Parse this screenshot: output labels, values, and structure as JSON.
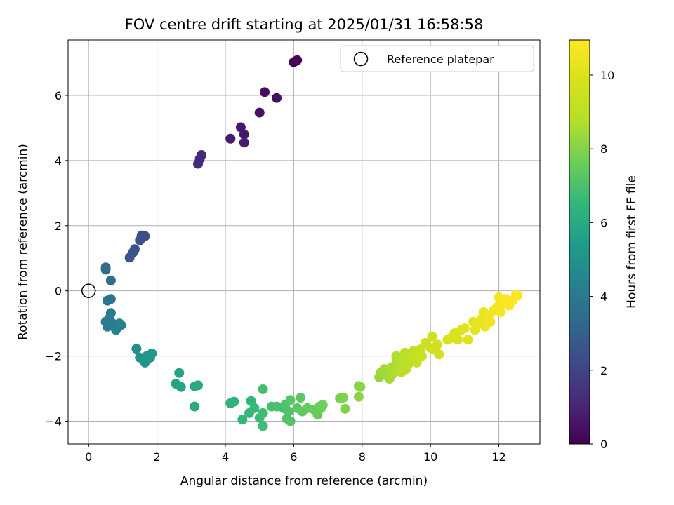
{
  "chart_data": {
    "type": "scatter",
    "title": "FOV centre drift starting at 2025/01/31 16:58:58",
    "xlabel": "Angular distance from reference (arcmin)",
    "ylabel": "Rotation from reference (arcmin)",
    "xlim": [
      -0.6,
      13.2
    ],
    "ylim": [
      -4.7,
      7.7
    ],
    "xticks": [
      "0",
      "2",
      "4",
      "6",
      "8",
      "10",
      "12"
    ],
    "yticks": [
      "−4",
      "−2",
      "0",
      "2",
      "4",
      "6"
    ],
    "grid": true,
    "legend": {
      "position": "top-right",
      "entries": [
        "Reference platepar"
      ]
    },
    "reference_point": {
      "x": 0,
      "y": 0
    },
    "colorbar": {
      "label": "Hours from first FF file",
      "range": [
        0,
        10.95
      ],
      "ticks": [
        "0",
        "2",
        "4",
        "6",
        "8",
        "10"
      ],
      "colormap": "viridis"
    },
    "points": [
      {
        "x": 6.05,
        "y": 7.05,
        "t": 0.0
      },
      {
        "x": 6.1,
        "y": 7.08,
        "t": 0.05
      },
      {
        "x": 6.0,
        "y": 7.02,
        "t": 0.1
      },
      {
        "x": 5.15,
        "y": 6.1,
        "t": 0.35
      },
      {
        "x": 5.5,
        "y": 5.92,
        "t": 0.4
      },
      {
        "x": 5.0,
        "y": 5.47,
        "t": 0.45
      },
      {
        "x": 4.45,
        "y": 5.02,
        "t": 0.6
      },
      {
        "x": 4.55,
        "y": 4.8,
        "t": 0.65
      },
      {
        "x": 4.15,
        "y": 4.67,
        "t": 0.7
      },
      {
        "x": 4.55,
        "y": 4.55,
        "t": 0.75
      },
      {
        "x": 3.3,
        "y": 4.17,
        "t": 1.1
      },
      {
        "x": 3.25,
        "y": 4.05,
        "t": 1.15
      },
      {
        "x": 3.2,
        "y": 3.9,
        "t": 1.2
      },
      {
        "x": 1.65,
        "y": 1.68,
        "t": 2.3
      },
      {
        "x": 1.55,
        "y": 1.7,
        "t": 2.35
      },
      {
        "x": 1.5,
        "y": 1.55,
        "t": 2.4
      },
      {
        "x": 1.35,
        "y": 1.28,
        "t": 2.5
      },
      {
        "x": 1.3,
        "y": 1.18,
        "t": 2.55
      },
      {
        "x": 1.2,
        "y": 1.02,
        "t": 2.6
      },
      {
        "x": 0.5,
        "y": 0.72,
        "t": 3.4
      },
      {
        "x": 0.5,
        "y": 0.65,
        "t": 3.45
      },
      {
        "x": 0.65,
        "y": 0.32,
        "t": 3.6
      },
      {
        "x": 0.65,
        "y": -0.25,
        "t": 3.8
      },
      {
        "x": 0.55,
        "y": -0.3,
        "t": 3.85
      },
      {
        "x": 0.65,
        "y": -0.68,
        "t": 4.0
      },
      {
        "x": 0.6,
        "y": -0.85,
        "t": 4.05
      },
      {
        "x": 0.5,
        "y": -0.95,
        "t": 4.1
      },
      {
        "x": 0.7,
        "y": -1.0,
        "t": 4.15
      },
      {
        "x": 0.55,
        "y": -1.1,
        "t": 4.2
      },
      {
        "x": 0.8,
        "y": -1.2,
        "t": 4.3
      },
      {
        "x": 0.95,
        "y": -1.05,
        "t": 4.35
      },
      {
        "x": 0.9,
        "y": -1.0,
        "t": 4.4
      },
      {
        "x": 1.4,
        "y": -1.78,
        "t": 4.9
      },
      {
        "x": 1.5,
        "y": -2.05,
        "t": 5.0
      },
      {
        "x": 1.6,
        "y": -2.1,
        "t": 5.05
      },
      {
        "x": 1.65,
        "y": -2.2,
        "t": 5.1
      },
      {
        "x": 1.7,
        "y": -2.0,
        "t": 5.15
      },
      {
        "x": 1.8,
        "y": -2.05,
        "t": 5.2
      },
      {
        "x": 1.85,
        "y": -1.92,
        "t": 5.25
      },
      {
        "x": 2.65,
        "y": -2.52,
        "t": 5.7
      },
      {
        "x": 2.55,
        "y": -2.85,
        "t": 5.75
      },
      {
        "x": 2.7,
        "y": -2.95,
        "t": 5.8
      },
      {
        "x": 3.1,
        "y": -2.93,
        "t": 5.9
      },
      {
        "x": 3.2,
        "y": -2.9,
        "t": 5.95
      },
      {
        "x": 3.1,
        "y": -3.55,
        "t": 6.0
      },
      {
        "x": 4.15,
        "y": -3.45,
        "t": 6.3
      },
      {
        "x": 4.25,
        "y": -3.4,
        "t": 6.35
      },
      {
        "x": 4.75,
        "y": -3.38,
        "t": 6.5
      },
      {
        "x": 4.5,
        "y": -3.95,
        "t": 6.55
      },
      {
        "x": 4.7,
        "y": -3.75,
        "t": 6.6
      },
      {
        "x": 4.85,
        "y": -3.6,
        "t": 6.65
      },
      {
        "x": 5.0,
        "y": -3.9,
        "t": 6.7
      },
      {
        "x": 5.1,
        "y": -4.15,
        "t": 6.75
      },
      {
        "x": 5.1,
        "y": -3.75,
        "t": 6.8
      },
      {
        "x": 5.1,
        "y": -3.02,
        "t": 6.85
      },
      {
        "x": 5.35,
        "y": -3.55,
        "t": 6.9
      },
      {
        "x": 5.5,
        "y": -3.55,
        "t": 6.95
      },
      {
        "x": 5.7,
        "y": -3.6,
        "t": 7.0
      },
      {
        "x": 5.75,
        "y": -3.5,
        "t": 7.05
      },
      {
        "x": 5.85,
        "y": -3.7,
        "t": 7.1
      },
      {
        "x": 5.8,
        "y": -3.92,
        "t": 7.15
      },
      {
        "x": 5.9,
        "y": -4.0,
        "t": 7.2
      },
      {
        "x": 5.9,
        "y": -3.35,
        "t": 7.25
      },
      {
        "x": 6.1,
        "y": -3.6,
        "t": 7.3
      },
      {
        "x": 6.2,
        "y": -3.28,
        "t": 7.35
      },
      {
        "x": 6.25,
        "y": -3.7,
        "t": 7.4
      },
      {
        "x": 6.4,
        "y": -3.6,
        "t": 7.45
      },
      {
        "x": 6.6,
        "y": -3.65,
        "t": 7.5
      },
      {
        "x": 6.7,
        "y": -3.8,
        "t": 7.55
      },
      {
        "x": 6.75,
        "y": -3.55,
        "t": 7.6
      },
      {
        "x": 6.8,
        "y": -3.6,
        "t": 7.65
      },
      {
        "x": 6.85,
        "y": -3.5,
        "t": 7.7
      },
      {
        "x": 7.35,
        "y": -3.3,
        "t": 7.85
      },
      {
        "x": 7.45,
        "y": -3.28,
        "t": 7.9
      },
      {
        "x": 7.5,
        "y": -3.62,
        "t": 7.95
      },
      {
        "x": 7.9,
        "y": -2.92,
        "t": 8.05
      },
      {
        "x": 7.95,
        "y": -2.95,
        "t": 8.1
      },
      {
        "x": 7.9,
        "y": -3.25,
        "t": 8.1
      },
      {
        "x": 8.5,
        "y": -2.65,
        "t": 8.3
      },
      {
        "x": 8.55,
        "y": -2.5,
        "t": 8.35
      },
      {
        "x": 8.65,
        "y": -2.4,
        "t": 8.4
      },
      {
        "x": 8.7,
        "y": -2.6,
        "t": 8.45
      },
      {
        "x": 8.8,
        "y": -2.7,
        "t": 8.5
      },
      {
        "x": 8.85,
        "y": -2.35,
        "t": 8.55
      },
      {
        "x": 8.9,
        "y": -2.55,
        "t": 8.6
      },
      {
        "x": 9.0,
        "y": -2.2,
        "t": 8.65
      },
      {
        "x": 9.0,
        "y": -2.0,
        "t": 8.7
      },
      {
        "x": 9.05,
        "y": -2.45,
        "t": 8.75
      },
      {
        "x": 9.1,
        "y": -2.3,
        "t": 8.8
      },
      {
        "x": 9.15,
        "y": -2.5,
        "t": 8.85
      },
      {
        "x": 9.2,
        "y": -2.15,
        "t": 8.9
      },
      {
        "x": 9.25,
        "y": -1.9,
        "t": 8.95
      },
      {
        "x": 9.3,
        "y": -2.4,
        "t": 9.0
      },
      {
        "x": 9.35,
        "y": -2.25,
        "t": 9.05
      },
      {
        "x": 9.45,
        "y": -2.1,
        "t": 9.1
      },
      {
        "x": 9.5,
        "y": -1.85,
        "t": 9.15
      },
      {
        "x": 9.55,
        "y": -2.0,
        "t": 9.2
      },
      {
        "x": 9.6,
        "y": -2.2,
        "t": 9.25
      },
      {
        "x": 9.7,
        "y": -1.8,
        "t": 9.3
      },
      {
        "x": 9.75,
        "y": -2.0,
        "t": 9.35
      },
      {
        "x": 9.85,
        "y": -1.6,
        "t": 9.4
      },
      {
        "x": 10.0,
        "y": -1.75,
        "t": 9.5
      },
      {
        "x": 10.05,
        "y": -1.4,
        "t": 9.55
      },
      {
        "x": 10.1,
        "y": -1.8,
        "t": 9.6
      },
      {
        "x": 10.2,
        "y": -1.65,
        "t": 9.65
      },
      {
        "x": 10.25,
        "y": -1.95,
        "t": 9.7
      },
      {
        "x": 10.5,
        "y": -1.5,
        "t": 9.8
      },
      {
        "x": 10.6,
        "y": -1.45,
        "t": 9.85
      },
      {
        "x": 10.7,
        "y": -1.3,
        "t": 9.9
      },
      {
        "x": 10.8,
        "y": -1.5,
        "t": 9.95
      },
      {
        "x": 10.9,
        "y": -1.2,
        "t": 10.0
      },
      {
        "x": 11.0,
        "y": -1.15,
        "t": 10.05
      },
      {
        "x": 11.1,
        "y": -1.5,
        "t": 10.1
      },
      {
        "x": 11.25,
        "y": -0.95,
        "t": 10.2
      },
      {
        "x": 11.3,
        "y": -1.2,
        "t": 10.25
      },
      {
        "x": 11.4,
        "y": -1.0,
        "t": 10.3
      },
      {
        "x": 11.5,
        "y": -0.85,
        "t": 10.35
      },
      {
        "x": 11.55,
        "y": -0.65,
        "t": 10.4
      },
      {
        "x": 11.6,
        "y": -1.1,
        "t": 10.45
      },
      {
        "x": 11.7,
        "y": -0.75,
        "t": 10.5
      },
      {
        "x": 11.75,
        "y": -0.95,
        "t": 10.55
      },
      {
        "x": 11.85,
        "y": -0.6,
        "t": 10.6
      },
      {
        "x": 11.95,
        "y": -0.5,
        "t": 10.65
      },
      {
        "x": 12.0,
        "y": -0.2,
        "t": 10.7
      },
      {
        "x": 12.05,
        "y": -0.65,
        "t": 10.75
      },
      {
        "x": 12.1,
        "y": -0.4,
        "t": 10.8
      },
      {
        "x": 12.2,
        "y": -0.25,
        "t": 10.82
      },
      {
        "x": 12.3,
        "y": -0.45,
        "t": 10.85
      },
      {
        "x": 12.4,
        "y": -0.3,
        "t": 10.88
      },
      {
        "x": 12.5,
        "y": -0.12,
        "t": 10.92
      },
      {
        "x": 12.55,
        "y": -0.15,
        "t": 10.95
      }
    ]
  }
}
